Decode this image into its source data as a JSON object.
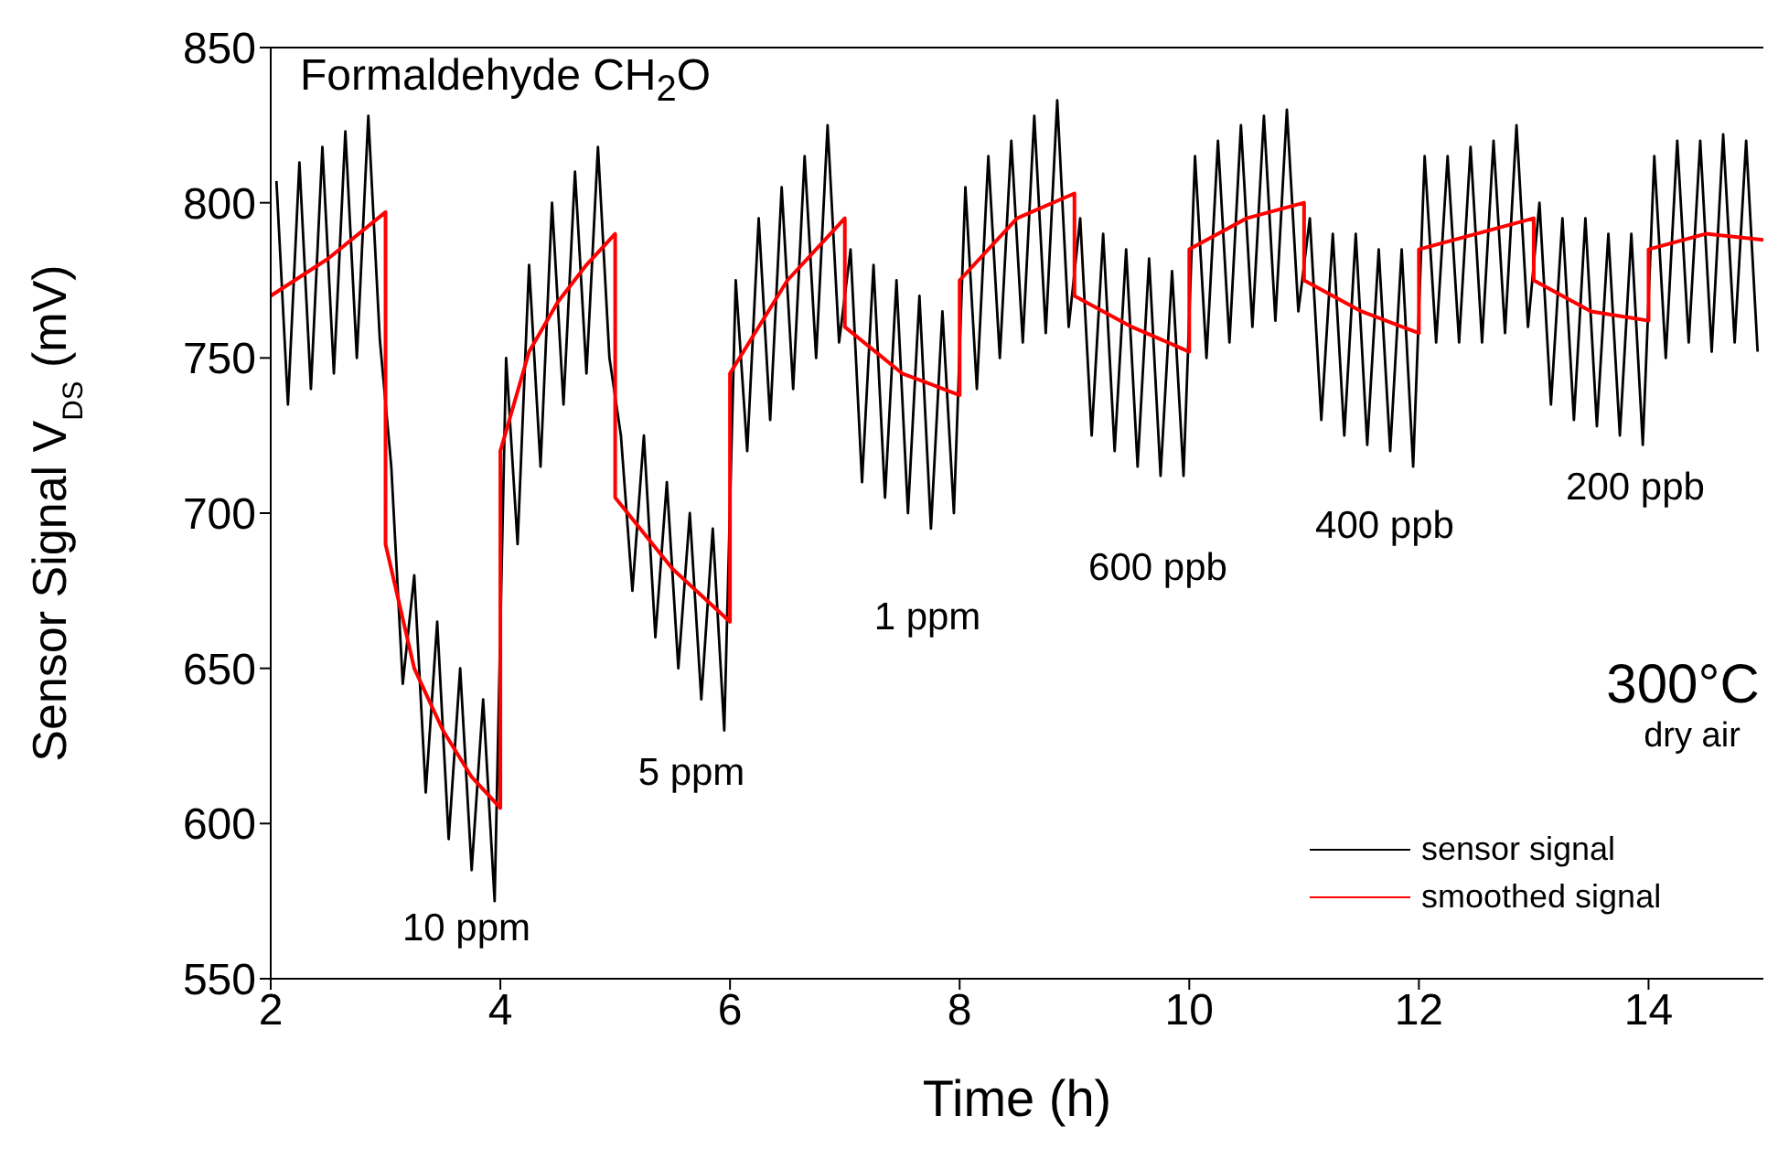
{
  "chart_data": {
    "type": "line",
    "title": "Formaldehyde CH$_{2}$O",
    "xlabel": "Time (h)",
    "ylabel": "Sensor Signal V$_{DS}$ (mV)",
    "xlim": [
      2,
      15
    ],
    "xticks": [
      2,
      4,
      6,
      8,
      10,
      12,
      14
    ],
    "ylim": [
      550,
      850
    ],
    "yticks": [
      550,
      600,
      650,
      700,
      750,
      800,
      850
    ],
    "legend": "bottom right",
    "line_style": "solid",
    "annotations": [
      "10 ppm",
      "5 ppm",
      "1 ppm",
      "600 ppb",
      "400 ppb",
      "200 ppb",
      "300°C",
      "dry air"
    ],
    "series": [
      {
        "name": "sensor signal",
        "color": "#000000",
        "x": [
          2.05,
          2.15,
          2.25,
          2.35,
          2.45,
          2.55,
          2.65,
          2.75,
          2.85,
          2.95,
          3.05,
          3.15,
          3.25,
          3.35,
          3.45,
          3.55,
          3.65,
          3.75,
          3.85,
          3.95,
          4.05,
          4.15,
          4.25,
          4.35,
          4.45,
          4.55,
          4.65,
          4.75,
          4.85,
          4.95,
          5.05,
          5.15,
          5.25,
          5.35,
          5.45,
          5.55,
          5.65,
          5.75,
          5.85,
          5.95,
          6.05,
          6.15,
          6.25,
          6.35,
          6.45,
          6.55,
          6.65,
          6.75,
          6.85,
          6.95,
          7.05,
          7.15,
          7.25,
          7.35,
          7.45,
          7.55,
          7.65,
          7.75,
          7.85,
          7.95,
          8.05,
          8.15,
          8.25,
          8.35,
          8.45,
          8.55,
          8.65,
          8.75,
          8.85,
          8.95,
          9.05,
          9.15,
          9.25,
          9.35,
          9.45,
          9.55,
          9.65,
          9.75,
          9.85,
          9.95,
          10.05,
          10.15,
          10.25,
          10.35,
          10.45,
          10.55,
          10.65,
          10.75,
          10.85,
          10.95,
          11.05,
          11.15,
          11.25,
          11.35,
          11.45,
          11.55,
          11.65,
          11.75,
          11.85,
          11.95,
          12.05,
          12.15,
          12.25,
          12.35,
          12.45,
          12.55,
          12.65,
          12.75,
          12.85,
          12.95,
          13.05,
          13.15,
          13.25,
          13.35,
          13.45,
          13.55,
          13.65,
          13.75,
          13.85,
          13.95,
          14.05,
          14.15,
          14.25,
          14.35,
          14.45,
          14.55,
          14.65,
          14.75,
          14.85,
          14.95
        ],
        "values": [
          807,
          735,
          813,
          740,
          818,
          745,
          823,
          750,
          828,
          756,
          715,
          645,
          680,
          610,
          665,
          595,
          650,
          585,
          640,
          575,
          750,
          690,
          780,
          715,
          800,
          735,
          810,
          745,
          818,
          750,
          725,
          675,
          725,
          660,
          710,
          650,
          700,
          640,
          695,
          630,
          775,
          720,
          795,
          730,
          805,
          740,
          815,
          750,
          825,
          755,
          785,
          710,
          780,
          705,
          775,
          700,
          770,
          695,
          765,
          700,
          805,
          740,
          815,
          750,
          820,
          755,
          828,
          758,
          833,
          760,
          795,
          725,
          790,
          720,
          785,
          715,
          782,
          712,
          778,
          712,
          815,
          750,
          820,
          755,
          825,
          760,
          828,
          762,
          830,
          765,
          795,
          730,
          790,
          725,
          790,
          722,
          785,
          720,
          785,
          715,
          815,
          755,
          815,
          755,
          818,
          755,
          820,
          758,
          825,
          760,
          800,
          735,
          795,
          730,
          795,
          728,
          790,
          725,
          790,
          722,
          815,
          750,
          820,
          755,
          820,
          752,
          822,
          755,
          820,
          752
        ]
      },
      {
        "name": "smoothed signal",
        "color": "#ff0000",
        "x": [
          2,
          2.5,
          3,
          3,
          3.25,
          3.5,
          3.75,
          4,
          4,
          4.25,
          4.5,
          4.75,
          5,
          5,
          5.5,
          6,
          6,
          6.5,
          7,
          7,
          7.5,
          8,
          8,
          8.5,
          9,
          9,
          9.5,
          10,
          10,
          10.5,
          11,
          11,
          11.5,
          12,
          12,
          12.5,
          13,
          13,
          13.5,
          14,
          14,
          14.5,
          15
        ],
        "values": [
          770,
          782,
          797,
          690,
          650,
          630,
          615,
          605,
          720,
          752,
          768,
          780,
          790,
          705,
          682,
          665,
          745,
          775,
          795,
          760,
          745,
          738,
          775,
          795,
          803,
          770,
          760,
          752,
          785,
          795,
          800,
          775,
          765,
          758,
          785,
          790,
          795,
          775,
          765,
          762,
          785,
          790,
          788
        ]
      }
    ]
  }
}
